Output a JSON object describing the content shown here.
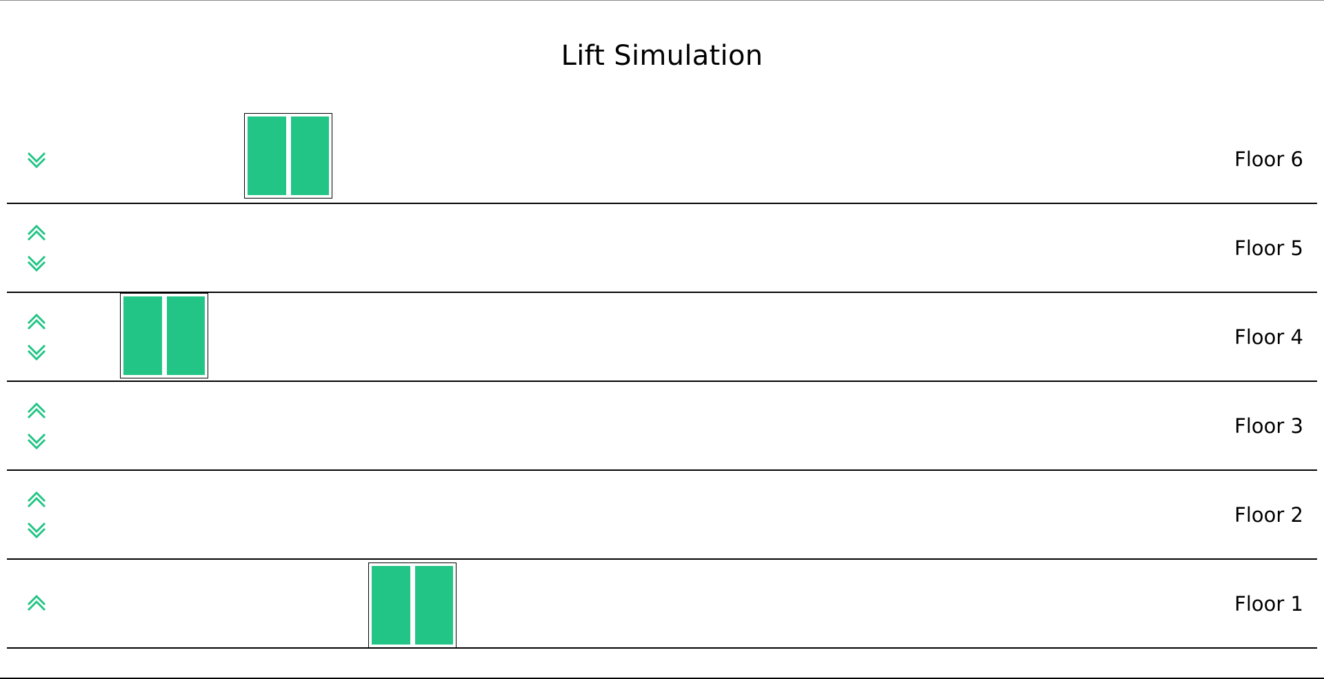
{
  "header": {
    "title": "Lift Simulation"
  },
  "colors": {
    "lift_door": "#22c585",
    "button": "#22c585"
  },
  "floors": [
    {
      "label": "Floor 6",
      "buttons": [
        "down"
      ]
    },
    {
      "label": "Floor 5",
      "buttons": [
        "up",
        "down"
      ]
    },
    {
      "label": "Floor 4",
      "buttons": [
        "up",
        "down"
      ]
    },
    {
      "label": "Floor 3",
      "buttons": [
        "up",
        "down"
      ]
    },
    {
      "label": "Floor 2",
      "buttons": [
        "up",
        "down"
      ]
    },
    {
      "label": "Floor 1",
      "buttons": [
        "up"
      ]
    }
  ],
  "lifts": [
    {
      "floor": 4,
      "shaft": 1
    },
    {
      "floor": 6,
      "shaft": 2
    },
    {
      "floor": 1,
      "shaft": 3
    }
  ],
  "icons": {
    "up": "double-chevron-up-icon",
    "down": "double-chevron-down-icon"
  }
}
